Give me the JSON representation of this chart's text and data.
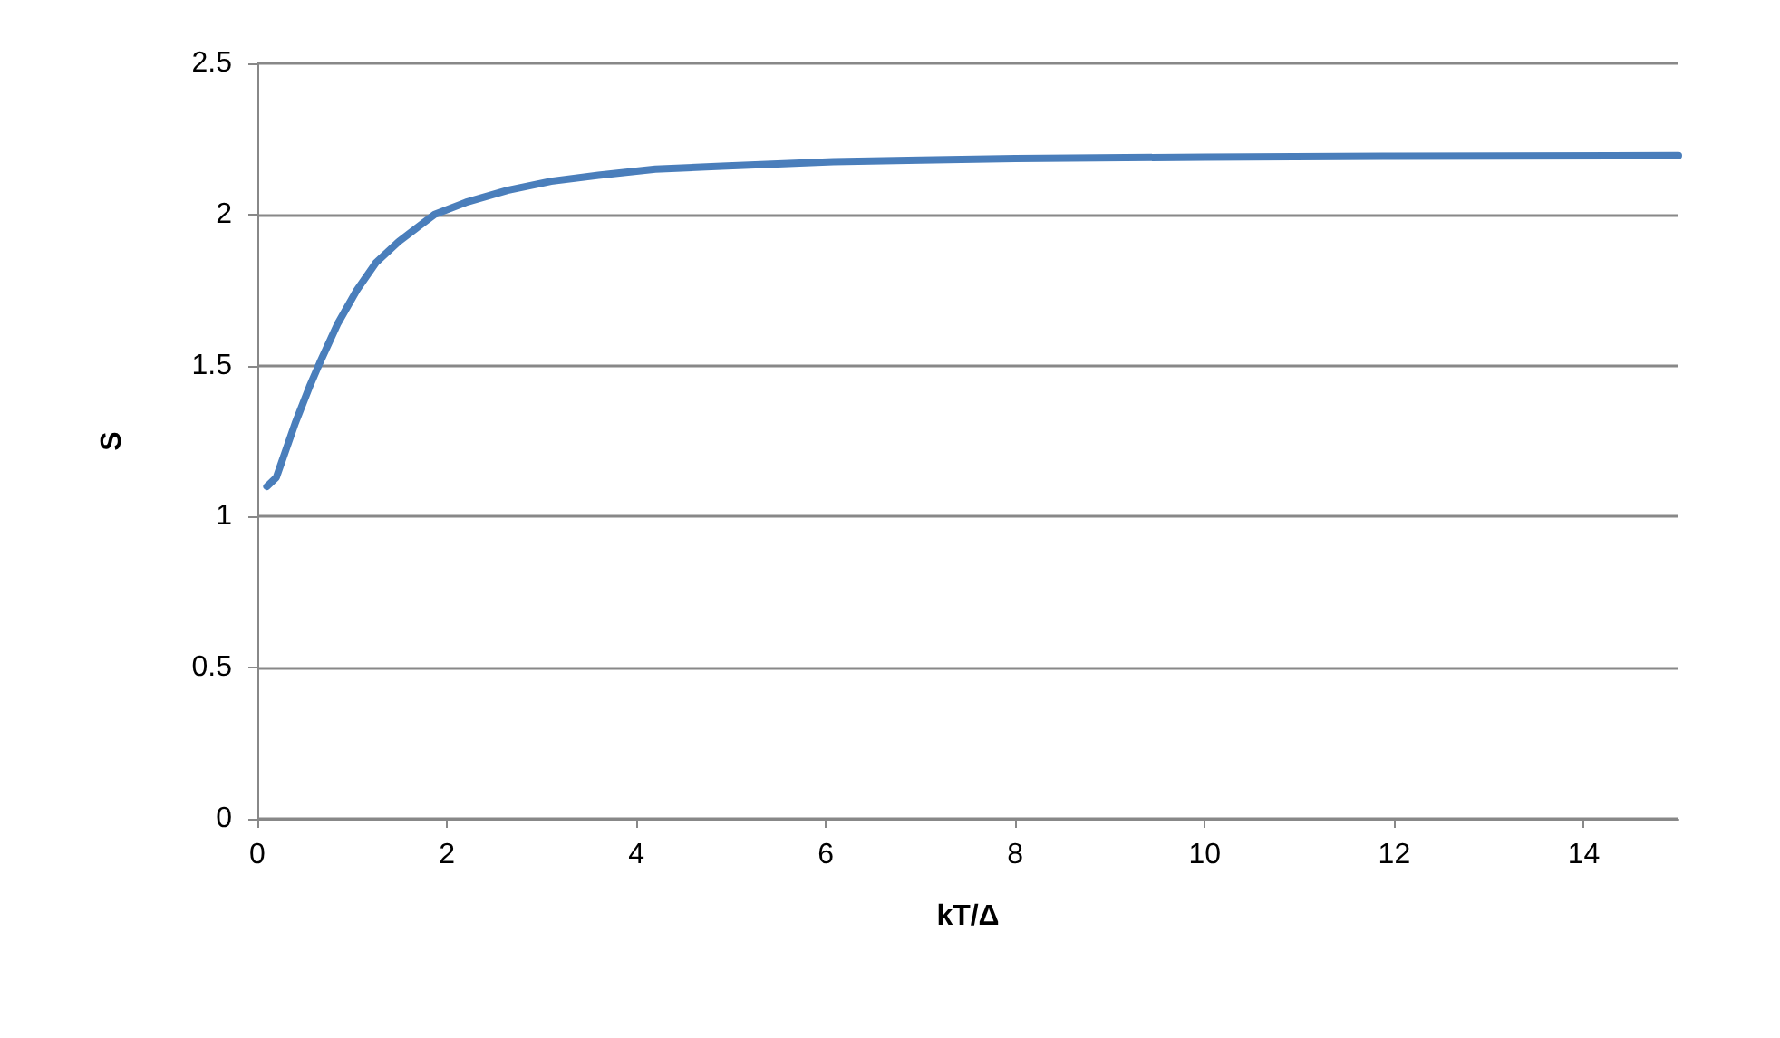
{
  "chart_data": {
    "type": "line",
    "xlabel": "kT/Δ",
    "ylabel": "S",
    "x": [
      0.1,
      0.2,
      0.3,
      0.4,
      0.55,
      0.66,
      0.85,
      1.05,
      1.25,
      1.49,
      1.7,
      1.87,
      2.2,
      2.64,
      3.1,
      3.6,
      4.2,
      4.9,
      6.08,
      7,
      8,
      10,
      12,
      15
    ],
    "series": [
      {
        "color": "#4a7ebb",
        "values": [
          1.1,
          1.13,
          1.22,
          1.31,
          1.43,
          1.51,
          1.64,
          1.75,
          1.84,
          1.91,
          1.96,
          2.0,
          2.04,
          2.08,
          2.11,
          2.13,
          2.15,
          2.16,
          2.175,
          2.18,
          2.185,
          2.19,
          2.193,
          2.195
        ]
      }
    ],
    "xlim": [
      0,
      15
    ],
    "xticks": [
      0,
      2,
      4,
      6,
      8,
      10,
      12,
      14
    ],
    "ylim": [
      0,
      2.5
    ],
    "yticks": [
      0,
      0.5,
      1,
      1.5,
      2,
      2.5
    ],
    "grid": "y",
    "marker": "none",
    "line_style": "solid"
  }
}
